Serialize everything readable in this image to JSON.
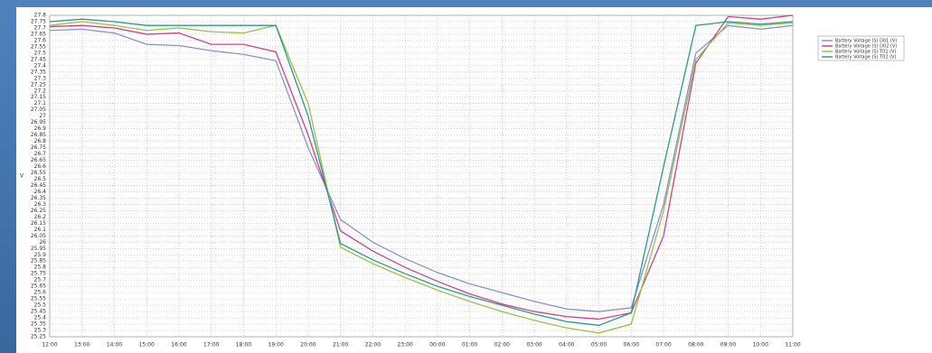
{
  "chart_data": {
    "type": "line",
    "y_label": "V",
    "categories": [
      "12:00",
      "13:00",
      "14:00",
      "15:00",
      "16:00",
      "17:00",
      "18:00",
      "19:00",
      "20:00",
      "21:00",
      "22:00",
      "23:00",
      "00:00",
      "01:00",
      "02:00",
      "03:00",
      "04:00",
      "05:00",
      "06:00",
      "07:00",
      "08:00",
      "09:00",
      "10:00",
      "11:00"
    ],
    "series": [
      {
        "name": "Battery Voltage (S) D01 (V)",
        "color": "#8a8fd0",
        "values": [
          27.68,
          27.69,
          27.66,
          27.57,
          27.56,
          27.52,
          27.49,
          27.44,
          26.75,
          26.18,
          26.0,
          25.87,
          25.76,
          25.67,
          25.6,
          25.53,
          25.47,
          25.45,
          25.48,
          26.3,
          27.5,
          27.72,
          27.69,
          27.72
        ]
      },
      {
        "name": "Battery Voltage (S) D02 (V)",
        "color": "#d0408a",
        "values": [
          27.71,
          27.72,
          27.7,
          27.65,
          27.66,
          27.57,
          27.57,
          27.51,
          26.85,
          26.09,
          25.93,
          25.8,
          25.69,
          25.59,
          25.51,
          25.45,
          25.41,
          25.39,
          25.44,
          26.05,
          27.42,
          27.79,
          27.77,
          27.8
        ]
      },
      {
        "name": "Battery Voltage (S) T01 (V)",
        "color": "#9cbf48",
        "values": [
          27.72,
          27.75,
          27.72,
          27.68,
          27.7,
          27.67,
          27.66,
          27.72,
          27.1,
          25.96,
          25.83,
          25.72,
          25.62,
          25.53,
          25.45,
          25.38,
          25.32,
          25.28,
          25.35,
          26.25,
          27.45,
          27.74,
          27.72,
          27.74
        ]
      },
      {
        "name": "Battery Voltage (S) T02 (V)",
        "color": "#2a9a88",
        "values": [
          27.75,
          27.77,
          27.75,
          27.72,
          27.72,
          27.72,
          27.72,
          27.72,
          27.0,
          25.99,
          25.86,
          25.75,
          25.65,
          25.57,
          25.5,
          25.43,
          25.37,
          25.34,
          25.44,
          26.6,
          27.72,
          27.75,
          27.73,
          27.75
        ]
      }
    ],
    "ylim": [
      25.25,
      27.8
    ],
    "yticks": [
      27.8,
      27.75,
      27.7,
      27.65,
      27.6,
      27.55,
      27.5,
      27.45,
      27.4,
      27.35,
      27.3,
      27.25,
      27.2,
      27.15,
      27.1,
      27.05,
      27,
      26.95,
      26.9,
      26.85,
      26.8,
      26.75,
      26.7,
      26.65,
      26.6,
      26.55,
      26.5,
      26.45,
      26.4,
      26.35,
      26.3,
      26.25,
      26.2,
      26.15,
      26.1,
      26.05,
      26,
      25.95,
      25.9,
      25.85,
      25.8,
      25.75,
      25.7,
      25.65,
      25.6,
      25.55,
      25.5,
      25.45,
      25.4,
      25.35,
      25.3,
      25.25
    ],
    "grid": true
  }
}
